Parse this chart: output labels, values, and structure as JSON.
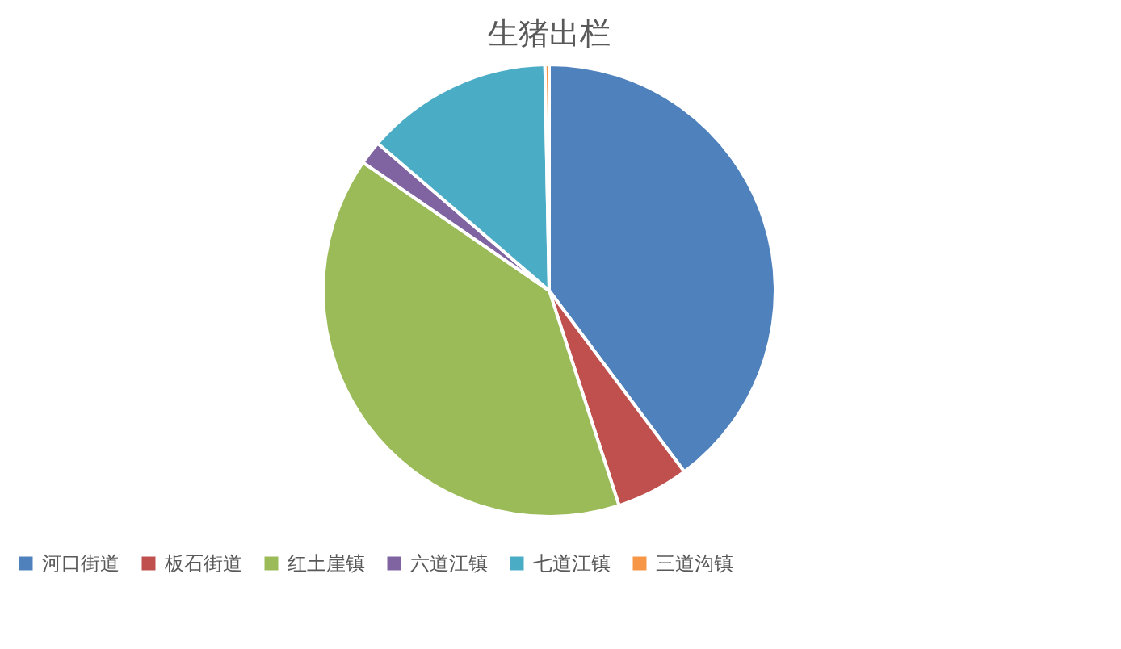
{
  "chart_data": {
    "type": "pie",
    "title": "生猪出栏",
    "categories": [
      "河口街道",
      "板石街道",
      "红土崖镇",
      "六道江镇",
      "七道江镇",
      "三道沟镇"
    ],
    "values": [
      39.8,
      5.2,
      39.6,
      1.7,
      13.4,
      0.3
    ],
    "colors": [
      "#4f81bd",
      "#c0504d",
      "#9bbb59",
      "#8064a2",
      "#4bacc6",
      "#f79646"
    ],
    "legend": "bottom"
  }
}
